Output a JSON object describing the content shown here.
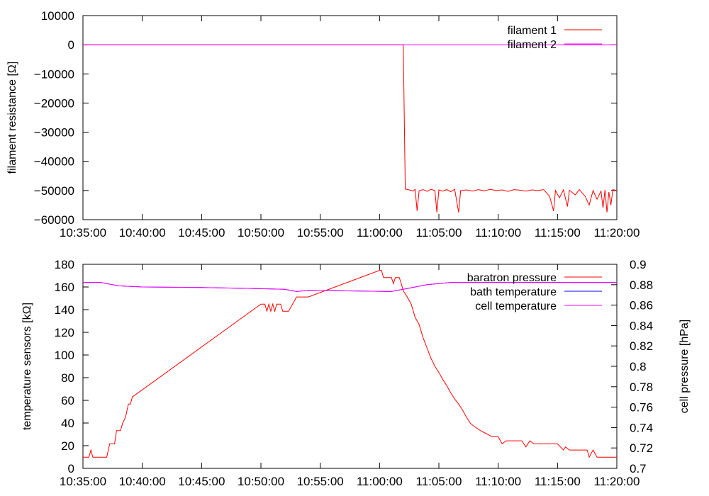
{
  "chart_data": [
    {
      "type": "line",
      "ylabel": "filament resistance [Ω]",
      "xlabel": "",
      "x_ticks": [
        "10:35:00",
        "10:40:00",
        "10:45:00",
        "10:50:00",
        "10:55:00",
        "11:00:00",
        "11:05:00",
        "11:10:00",
        "11:15:00",
        "11:20:00"
      ],
      "xlim": [
        "10:35:00",
        "11:20:00"
      ],
      "ylim": [
        -60000,
        10000
      ],
      "y_ticks": [
        "10000",
        "0",
        "−10000",
        "−20000",
        "−30000",
        "−40000",
        "−50000",
        "−60000"
      ],
      "legend_position": "top-right",
      "series": [
        {
          "name": "filament 1",
          "color": "#ff0000",
          "points": [
            [
              "10:35:00",
              0
            ],
            [
              "11:02:00",
              0
            ],
            [
              "11:02:10",
              -49500
            ],
            [
              "11:02:30",
              -49800
            ],
            [
              "11:02:50",
              -50200
            ],
            [
              "11:03:00",
              -49600
            ],
            [
              "11:03:10",
              -57000
            ],
            [
              "11:03:20",
              -50100
            ],
            [
              "11:03:40",
              -49700
            ],
            [
              "11:04:00",
              -50300
            ],
            [
              "11:04:20",
              -49600
            ],
            [
              "11:04:40",
              -50000
            ],
            [
              "11:04:50",
              -57500
            ],
            [
              "11:05:00",
              -49800
            ],
            [
              "11:05:20",
              -50200
            ],
            [
              "11:05:40",
              -49700
            ],
            [
              "11:06:00",
              -50400
            ],
            [
              "11:06:20",
              -49600
            ],
            [
              "11:06:40",
              -57500
            ],
            [
              "11:06:50",
              -50000
            ],
            [
              "11:07:20",
              -49800
            ],
            [
              "11:07:50",
              -50200
            ],
            [
              "11:08:20",
              -49700
            ],
            [
              "11:08:50",
              -50100
            ],
            [
              "11:09:20",
              -49600
            ],
            [
              "11:09:50",
              -50000
            ],
            [
              "11:10:20",
              -49800
            ],
            [
              "11:10:50",
              -50300
            ],
            [
              "11:11:20",
              -49700
            ],
            [
              "11:11:50",
              -49900
            ],
            [
              "11:12:20",
              -50200
            ],
            [
              "11:12:50",
              -49800
            ],
            [
              "11:13:20",
              -50000
            ],
            [
              "11:13:50",
              -49700
            ],
            [
              "11:14:20",
              -52000
            ],
            [
              "11:14:40",
              -57000
            ],
            [
              "11:14:50",
              -50000
            ],
            [
              "11:15:10",
              -52500
            ],
            [
              "11:15:30",
              -49800
            ],
            [
              "11:15:50",
              -55500
            ],
            [
              "11:16:00",
              -49900
            ],
            [
              "11:16:30",
              -51500
            ],
            [
              "11:16:50",
              -49700
            ],
            [
              "11:17:20",
              -52000
            ],
            [
              "11:17:40",
              -55000
            ],
            [
              "11:18:00",
              -50000
            ],
            [
              "11:18:20",
              -53000
            ],
            [
              "11:18:40",
              -50200
            ],
            [
              "11:18:50",
              -56000
            ],
            [
              "11:19:00",
              -49800
            ],
            [
              "11:19:10",
              -57500
            ],
            [
              "11:19:20",
              -50500
            ],
            [
              "11:19:30",
              -55000
            ],
            [
              "11:19:40",
              -49700
            ],
            [
              "11:20:00",
              -50000
            ]
          ]
        },
        {
          "name": "filament 2",
          "color": "#ff00ff",
          "points": [
            [
              "10:35:00",
              0
            ],
            [
              "11:20:00",
              0
            ]
          ]
        }
      ]
    },
    {
      "type": "line",
      "ylabel": "temperature sensors [kΩ]",
      "y2label": "cell pressure [hPa]",
      "xlabel": "",
      "x_ticks": [
        "10:35:00",
        "10:40:00",
        "10:45:00",
        "10:50:00",
        "10:55:00",
        "11:00:00",
        "11:05:00",
        "11:10:00",
        "11:15:00",
        "11:20:00"
      ],
      "xlim": [
        "10:35:00",
        "11:20:00"
      ],
      "ylim": [
        0,
        180
      ],
      "y2lim": [
        0.7,
        0.9
      ],
      "y_ticks": [
        "0",
        "20",
        "40",
        "60",
        "80",
        "100",
        "120",
        "140",
        "160",
        "180"
      ],
      "y2_ticks": [
        "0.7",
        "0.72",
        "0.74",
        "0.76",
        "0.78",
        "0.8",
        "0.82",
        "0.84",
        "0.86",
        "0.88",
        "0.9"
      ],
      "legend_position": "top-right",
      "series": [
        {
          "name": "baratron pressure",
          "color": "#ff0000",
          "axis": "y2",
          "points": [
            [
              "10:35:00",
              0.711
            ],
            [
              "10:35:30",
              0.711
            ],
            [
              "10:35:40",
              0.718
            ],
            [
              "10:35:50",
              0.711
            ],
            [
              "10:37:00",
              0.711
            ],
            [
              "10:37:15",
              0.724
            ],
            [
              "10:37:40",
              0.724
            ],
            [
              "10:37:50",
              0.737
            ],
            [
              "10:38:10",
              0.737
            ],
            [
              "10:38:20",
              0.744
            ],
            [
              "10:38:35",
              0.75
            ],
            [
              "10:38:50",
              0.763
            ],
            [
              "10:39:00",
              0.763
            ],
            [
              "10:39:10",
              0.77
            ],
            [
              "10:50:00",
              0.861
            ],
            [
              "10:50:20",
              0.861
            ],
            [
              "10:50:30",
              0.854
            ],
            [
              "10:50:40",
              0.861
            ],
            [
              "10:50:50",
              0.854
            ],
            [
              "10:51:00",
              0.861
            ],
            [
              "10:51:10",
              0.854
            ],
            [
              "10:51:20",
              0.861
            ],
            [
              "10:51:40",
              0.861
            ],
            [
              "10:51:50",
              0.854
            ],
            [
              "10:52:20",
              0.854
            ],
            [
              "10:52:40",
              0.861
            ],
            [
              "10:53:00",
              0.868
            ],
            [
              "10:54:00",
              0.868
            ],
            [
              "11:00:00",
              0.894
            ],
            [
              "11:00:10",
              0.894
            ],
            [
              "11:00:20",
              0.887
            ],
            [
              "11:01:00",
              0.887
            ],
            [
              "11:01:10",
              0.881
            ],
            [
              "11:01:20",
              0.887
            ],
            [
              "11:01:40",
              0.887
            ],
            [
              "11:01:50",
              0.881
            ],
            [
              "11:02:00",
              0.874
            ],
            [
              "11:02:20",
              0.868
            ],
            [
              "11:02:40",
              0.861
            ],
            [
              "11:03:00",
              0.848
            ],
            [
              "11:03:20",
              0.841
            ],
            [
              "11:03:40",
              0.828
            ],
            [
              "11:04:00",
              0.818
            ],
            [
              "11:04:20",
              0.808
            ],
            [
              "11:04:40",
              0.8
            ],
            [
              "11:05:00",
              0.794
            ],
            [
              "11:05:20",
              0.787
            ],
            [
              "11:05:40",
              0.781
            ],
            [
              "11:06:00",
              0.774
            ],
            [
              "11:06:20",
              0.768
            ],
            [
              "11:06:40",
              0.763
            ],
            [
              "11:07:00",
              0.757
            ],
            [
              "11:07:20",
              0.75
            ],
            [
              "11:07:40",
              0.744
            ],
            [
              "11:08:00",
              0.741
            ],
            [
              "11:08:30",
              0.737
            ],
            [
              "11:09:00",
              0.734
            ],
            [
              "11:09:30",
              0.731
            ],
            [
              "11:10:00",
              0.731
            ],
            [
              "11:10:20",
              0.724
            ],
            [
              "11:10:40",
              0.727
            ],
            [
              "11:11:00",
              0.727
            ],
            [
              "11:12:00",
              0.727
            ],
            [
              "11:12:20",
              0.721
            ],
            [
              "11:12:40",
              0.727
            ],
            [
              "11:13:00",
              0.724
            ],
            [
              "11:14:00",
              0.724
            ],
            [
              "11:15:00",
              0.724
            ],
            [
              "11:15:30",
              0.718
            ],
            [
              "11:15:40",
              0.721
            ],
            [
              "11:16:00",
              0.718
            ],
            [
              "11:17:00",
              0.718
            ],
            [
              "11:17:30",
              0.718
            ],
            [
              "11:17:40",
              0.711
            ],
            [
              "11:18:00",
              0.718
            ],
            [
              "11:18:20",
              0.711
            ],
            [
              "11:20:00",
              0.711
            ]
          ]
        },
        {
          "name": "bath temperature",
          "color": "#0000ff",
          "axis": "y",
          "points": [
            [
              "10:35:00",
              164
            ],
            [
              "10:36:30",
              164
            ],
            [
              "10:38:00",
              161
            ],
            [
              "10:40:00",
              160
            ],
            [
              "10:45:00",
              159.5
            ],
            [
              "10:50:00",
              158.5
            ],
            [
              "10:52:00",
              158
            ],
            [
              "10:53:00",
              156
            ],
            [
              "10:54:00",
              157
            ],
            [
              "11:01:00",
              156
            ],
            [
              "11:02:00",
              158
            ],
            [
              "11:04:00",
              162
            ],
            [
              "11:06:00",
              164
            ],
            [
              "11:10:00",
              164
            ],
            [
              "11:20:00",
              164
            ]
          ]
        },
        {
          "name": "cell temperature",
          "color": "#ff00ff",
          "axis": "y",
          "points": [
            [
              "10:35:00",
              164
            ],
            [
              "10:36:30",
              164
            ],
            [
              "10:38:00",
              161
            ],
            [
              "10:40:00",
              160
            ],
            [
              "10:45:00",
              159.5
            ],
            [
              "10:50:00",
              158.5
            ],
            [
              "10:52:00",
              158
            ],
            [
              "10:53:00",
              156
            ],
            [
              "10:54:00",
              157
            ],
            [
              "11:01:00",
              156
            ],
            [
              "11:02:00",
              158
            ],
            [
              "11:04:00",
              162
            ],
            [
              "11:06:00",
              164
            ],
            [
              "11:10:00",
              164
            ],
            [
              "11:20:00",
              164
            ]
          ]
        }
      ]
    }
  ]
}
